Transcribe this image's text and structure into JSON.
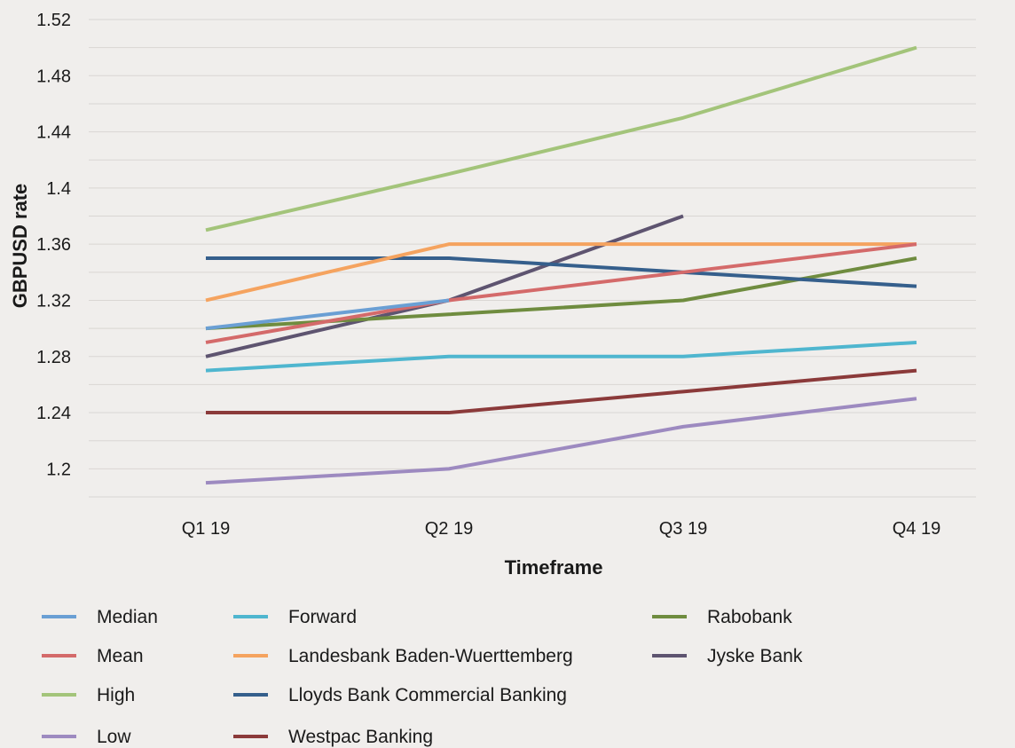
{
  "chart_data": {
    "type": "line",
    "xlabel": "Timeframe",
    "ylabel": "GBPUSD rate",
    "categories": [
      "Q1 19",
      "Q2 19",
      "Q3 19",
      "Q4 19"
    ],
    "y_ticks": [
      "1.2",
      "1.24",
      "1.28",
      "1.32",
      "1.36",
      "1.4",
      "1.44",
      "1.48",
      "1.52"
    ],
    "ylim": [
      1.18,
      1.52
    ],
    "grid": true,
    "legend_position": "bottom",
    "series": [
      {
        "name": "Median",
        "color": "#6a9fd4",
        "values": [
          1.3,
          1.32,
          null,
          null
        ]
      },
      {
        "name": "Mean",
        "color": "#d46a6a",
        "values": [
          1.29,
          1.32,
          1.34,
          1.36
        ]
      },
      {
        "name": "High",
        "color": "#a3c47a",
        "values": [
          1.37,
          1.41,
          1.45,
          1.5
        ]
      },
      {
        "name": "Low",
        "color": "#9d8ac0",
        "values": [
          1.19,
          1.2,
          1.23,
          1.25
        ]
      },
      {
        "name": "Forward",
        "color": "#4fb6cf",
        "values": [
          1.27,
          1.28,
          1.28,
          1.29
        ]
      },
      {
        "name": "Landesbank Baden-Wuerttemberg",
        "color": "#f5a35f",
        "values": [
          1.32,
          1.36,
          1.36,
          1.36
        ]
      },
      {
        "name": "Lloyds Bank Commercial Banking",
        "color": "#355f8c",
        "values": [
          1.35,
          1.35,
          1.34,
          1.33
        ]
      },
      {
        "name": "Westpac Banking",
        "color": "#8b3a3a",
        "values": [
          1.24,
          1.24,
          1.255,
          1.27
        ]
      },
      {
        "name": "Rabobank",
        "color": "#6f8c3f",
        "values": [
          1.3,
          1.31,
          1.32,
          1.35
        ]
      },
      {
        "name": "Jyske Bank",
        "color": "#5e5470",
        "values": [
          1.28,
          1.32,
          1.38,
          null
        ]
      }
    ]
  }
}
